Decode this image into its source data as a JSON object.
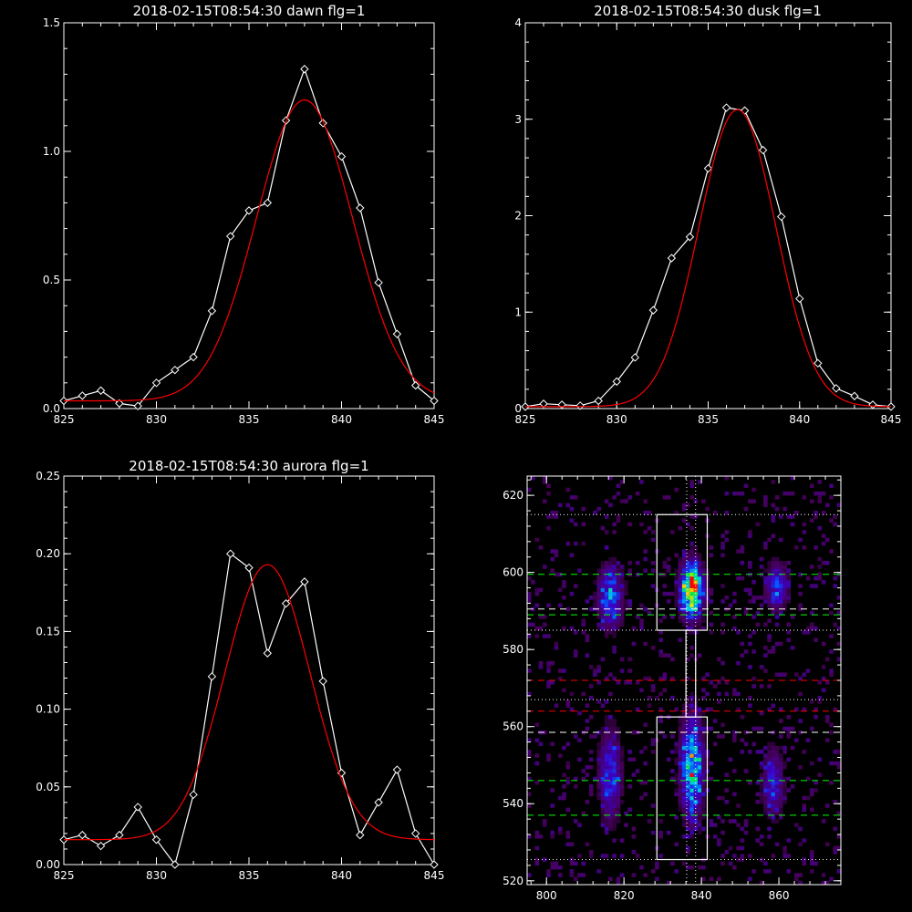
{
  "chart_data": [
    {
      "type": "line",
      "title": "2018-02-15T08:54:30 dawn flg=1",
      "xlim": [
        825,
        845
      ],
      "ylim": [
        0,
        1.5
      ],
      "x_ticks": [
        "825",
        "830",
        "835",
        "840",
        "845"
      ],
      "y_ticks": [
        "0.0",
        "0.5",
        "1.0",
        "1.5"
      ],
      "series": [
        {
          "color": "#ffffff",
          "marker": "diamond",
          "x": [
            825,
            826,
            827,
            828,
            829,
            830,
            831,
            832,
            833,
            834,
            835,
            836,
            837,
            838,
            839,
            840,
            841,
            842,
            843,
            844,
            845
          ],
          "y": [
            0.03,
            0.05,
            0.07,
            0.02,
            0.01,
            0.1,
            0.15,
            0.2,
            0.38,
            0.67,
            0.77,
            0.8,
            1.12,
            1.32,
            1.11,
            0.98,
            0.78,
            0.49,
            0.29,
            0.09,
            0.03
          ]
        },
        {
          "color": "#ff0000",
          "marker": "none",
          "fit": "gaussian",
          "amplitude": 1.17,
          "center": 838.0,
          "sigma": 2.6,
          "offset": 0.03
        }
      ]
    },
    {
      "type": "line",
      "title": "2018-02-15T08:54:30 dusk flg=1",
      "xlim": [
        825,
        845
      ],
      "ylim": [
        0,
        4
      ],
      "x_ticks": [
        "825",
        "830",
        "835",
        "840",
        "845"
      ],
      "y_ticks": [
        "0",
        "1",
        "2",
        "3",
        "4"
      ],
      "series": [
        {
          "color": "#ffffff",
          "marker": "diamond",
          "x": [
            825,
            826,
            827,
            828,
            829,
            830,
            831,
            832,
            833,
            834,
            835,
            836,
            837,
            838,
            839,
            840,
            841,
            842,
            843,
            844,
            845
          ],
          "y": [
            0.02,
            0.05,
            0.04,
            0.03,
            0.08,
            0.28,
            0.53,
            1.02,
            1.56,
            1.78,
            2.49,
            3.12,
            3.09,
            2.68,
            1.99,
            1.14,
            0.47,
            0.21,
            0.13,
            0.04,
            0.02
          ]
        },
        {
          "color": "#ff0000",
          "marker": "none",
          "fit": "gaussian",
          "amplitude": 3.08,
          "center": 836.6,
          "sigma": 2.1,
          "offset": 0.02
        }
      ]
    },
    {
      "type": "line",
      "title": "2018-02-15T08:54:30 aurora flg=1",
      "xlim": [
        825,
        845
      ],
      "ylim": [
        0,
        0.25
      ],
      "x_ticks": [
        "825",
        "830",
        "835",
        "840",
        "845"
      ],
      "y_ticks": [
        "0.00",
        "0.05",
        "0.10",
        "0.15",
        "0.20",
        "0.25"
      ],
      "series": [
        {
          "color": "#ffffff",
          "marker": "diamond",
          "x": [
            825,
            826,
            827,
            828,
            829,
            830,
            831,
            832,
            833,
            834,
            835,
            836,
            837,
            838,
            839,
            840,
            841,
            842,
            843,
            844,
            845
          ],
          "y": [
            0.016,
            0.019,
            0.012,
            0.019,
            0.037,
            0.016,
            0.0,
            0.045,
            0.121,
            0.2,
            0.191,
            0.136,
            0.168,
            0.182,
            0.118,
            0.059,
            0.019,
            0.04,
            0.061,
            0.02,
            0.0
          ]
        },
        {
          "color": "#ff0000",
          "marker": "none",
          "fit": "gaussian",
          "amplitude": 0.177,
          "center": 836.0,
          "sigma": 2.3,
          "offset": 0.016
        }
      ]
    },
    {
      "type": "heatmap",
      "title": "",
      "xlim": [
        795,
        876
      ],
      "ylim": [
        519,
        625
      ],
      "x_ticks": [
        "800",
        "820",
        "840",
        "860"
      ],
      "y_ticks": [
        "520",
        "540",
        "560",
        "580",
        "600",
        "620"
      ],
      "colormap": "rainbow",
      "blobs": [
        {
          "x": 816,
          "y": 593,
          "sx": 2.2,
          "sy": 5.5,
          "amp": 0.55
        },
        {
          "x": 837,
          "y": 595,
          "sx": 2.0,
          "sy": 5.0,
          "amp": 1.0
        },
        {
          "x": 859,
          "y": 596,
          "sx": 2.0,
          "sy": 4.0,
          "amp": 0.45
        },
        {
          "x": 816,
          "y": 547,
          "sx": 2.0,
          "sy": 8.0,
          "amp": 0.45
        },
        {
          "x": 837,
          "y": 549,
          "sx": 2.0,
          "sy": 9.0,
          "amp": 0.72
        },
        {
          "x": 858,
          "y": 545,
          "sx": 2.0,
          "sy": 6.0,
          "amp": 0.38
        }
      ],
      "boxes": [
        {
          "x0": 828.5,
          "x1": 841.5,
          "y0": 585,
          "y1": 615,
          "color": "#ffffff"
        },
        {
          "x0": 828.5,
          "x1": 841.5,
          "y0": 525.5,
          "y1": 562.5,
          "color": "#ffffff"
        }
      ],
      "connector": {
        "x0": 836,
        "x1": 838.5,
        "y0": 562.5,
        "y1": 585,
        "color": "#ffffff"
      },
      "hlines_dotted": [
        {
          "y": 615,
          "color": "#ffffff"
        },
        {
          "y": 585,
          "color": "#ffffff"
        },
        {
          "y": 567,
          "color": "#ffffff"
        },
        {
          "y": 525.5,
          "color": "#ffffff"
        }
      ],
      "vlines_dotted": [
        {
          "x": 836.2,
          "color": "#ffffff"
        },
        {
          "x": 838.5,
          "color": "#ffffff"
        }
      ],
      "hlines_dashed": [
        {
          "y": 599.5,
          "color": "#00ff00"
        },
        {
          "y": 590.5,
          "color": "#ffffff"
        },
        {
          "y": 589,
          "color": "#00ff00"
        },
        {
          "y": 572,
          "color": "#ff0000"
        },
        {
          "y": 564,
          "color": "#ff0000"
        },
        {
          "y": 558.5,
          "color": "#ffffff"
        },
        {
          "y": 546,
          "color": "#00ff00"
        },
        {
          "y": 537,
          "color": "#00ff00"
        }
      ]
    }
  ]
}
